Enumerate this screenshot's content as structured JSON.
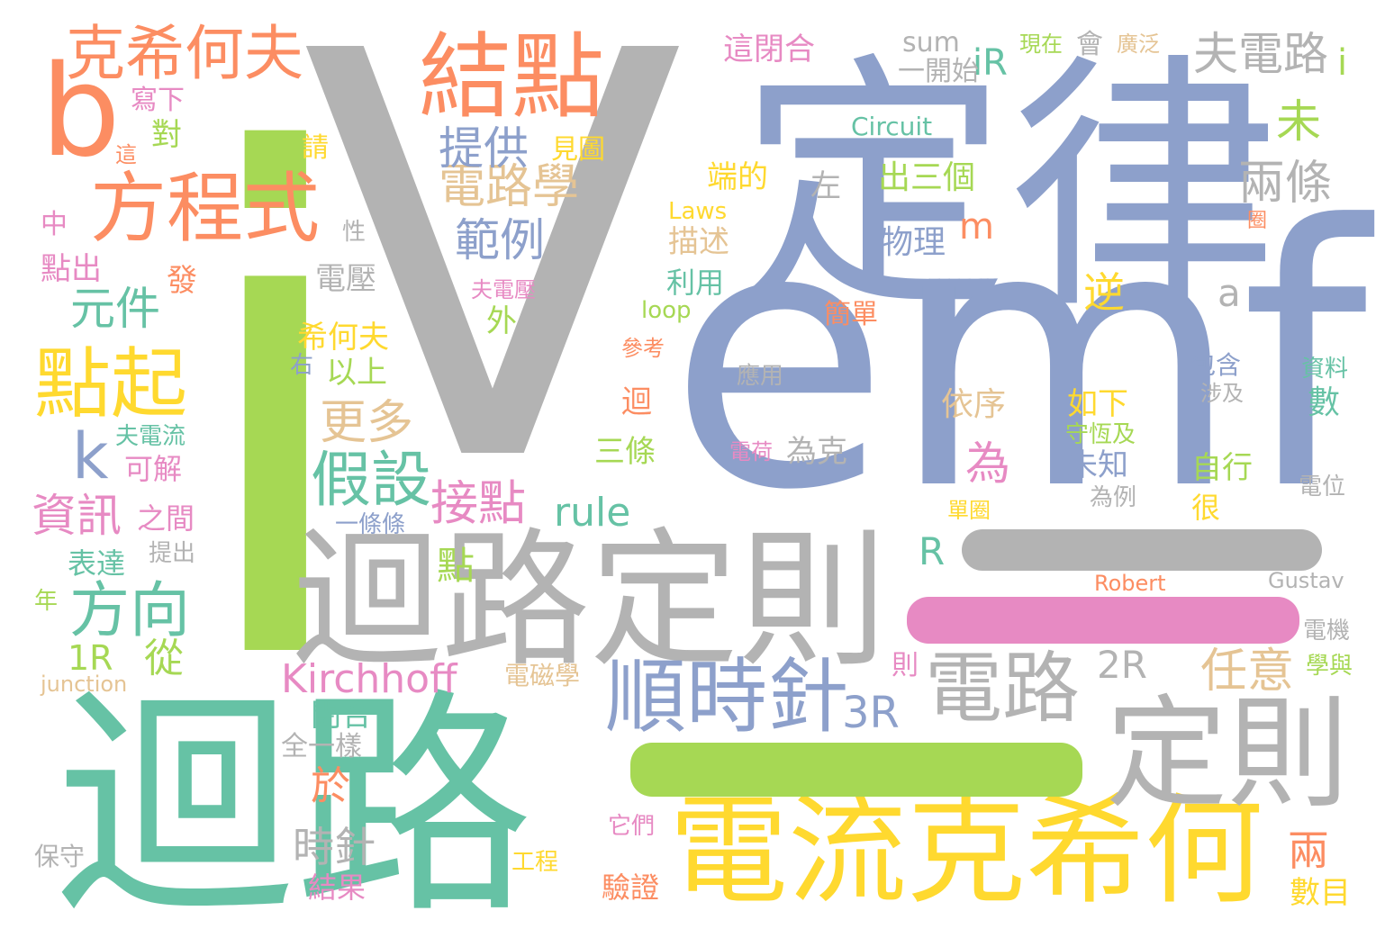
{
  "palette": {
    "green": "#a6d854",
    "grey": "#b3b3b3",
    "blue": "#8da0cb",
    "teal": "#66c2a5",
    "orange": "#fc8d62",
    "yellow": "#ffd92f",
    "pink": "#e78ac3",
    "tan": "#e5c494"
  },
  "words": [
    {
      "text": "i",
      "color": "green"
    },
    {
      "text": "V",
      "color": "grey"
    },
    {
      "text": "定律",
      "color": "blue"
    },
    {
      "text": "emf",
      "color": "blue"
    },
    {
      "text": "迴路",
      "color": "teal"
    },
    {
      "text": "迴路定則",
      "color": "grey"
    },
    {
      "text": "電流克希何",
      "color": "yellow"
    },
    {
      "text": "定則",
      "color": "grey"
    },
    {
      "text": "結點",
      "color": "orange"
    },
    {
      "text": "方程式",
      "color": "orange"
    },
    {
      "text": "克希何夫",
      "color": "orange"
    },
    {
      "text": "b",
      "color": "orange"
    },
    {
      "text": "點起",
      "color": "yellow"
    },
    {
      "text": "順時針",
      "color": "blue"
    },
    {
      "text": "電路",
      "color": "grey"
    },
    {
      "text": "假設",
      "color": "teal"
    },
    {
      "text": "電路學",
      "color": "tan"
    },
    {
      "text": "提供",
      "color": "blue"
    },
    {
      "text": "範例",
      "color": "blue"
    },
    {
      "text": "夫電路",
      "color": "grey"
    },
    {
      "text": "i",
      "color": "green"
    },
    {
      "text": "兩條",
      "color": "grey"
    },
    {
      "text": "未",
      "color": "green"
    },
    {
      "text": "元件",
      "color": "teal"
    },
    {
      "text": "k",
      "color": "blue"
    },
    {
      "text": "資訊",
      "color": "pink"
    },
    {
      "text": "方向",
      "color": "teal"
    },
    {
      "text": "接點",
      "color": "pink"
    },
    {
      "text": "更多",
      "color": "tan"
    },
    {
      "text": "Kirchhoff",
      "color": "pink"
    },
    {
      "text": "rule",
      "color": "teal"
    },
    {
      "text": "任意",
      "color": "tan"
    },
    {
      "text": "2R",
      "color": "grey"
    },
    {
      "text": "3R",
      "color": "blue"
    },
    {
      "text": "時針",
      "color": "grey"
    },
    {
      "text": "兩",
      "color": "orange"
    },
    {
      "text": "數目",
      "color": "yellow"
    },
    {
      "text": "iR",
      "color": "teal"
    },
    {
      "text": "sum",
      "color": "grey"
    },
    {
      "text": "一開始",
      "color": "grey"
    },
    {
      "text": "這閉合",
      "color": "pink"
    },
    {
      "text": "現在",
      "color": "green"
    },
    {
      "text": "會",
      "color": "grey"
    },
    {
      "text": "廣泛",
      "color": "tan"
    },
    {
      "text": "Circuit",
      "color": "teal"
    },
    {
      "text": "端的",
      "color": "yellow"
    },
    {
      "text": "左",
      "color": "grey"
    },
    {
      "text": "出三個",
      "color": "green"
    },
    {
      "text": "Laws",
      "color": "yellow"
    },
    {
      "text": "描述",
      "color": "tan"
    },
    {
      "text": "物理",
      "color": "blue"
    },
    {
      "text": "m",
      "color": "orange"
    },
    {
      "text": "利用",
      "color": "teal"
    },
    {
      "text": "loop",
      "color": "green"
    },
    {
      "text": "逆",
      "color": "yellow"
    },
    {
      "text": "a",
      "color": "grey"
    },
    {
      "text": "簡單",
      "color": "orange"
    },
    {
      "text": "參考",
      "color": "orange"
    },
    {
      "text": "應用",
      "color": "grey"
    },
    {
      "text": "迴",
      "color": "orange"
    },
    {
      "text": "三條",
      "color": "green"
    },
    {
      "text": "電荷",
      "color": "pink"
    },
    {
      "text": "為克",
      "color": "grey"
    },
    {
      "text": "依序",
      "color": "tan"
    },
    {
      "text": "如下",
      "color": "yellow"
    },
    {
      "text": "守恆及",
      "color": "green"
    },
    {
      "text": "未知",
      "color": "blue"
    },
    {
      "text": "為",
      "color": "pink"
    },
    {
      "text": "為例",
      "color": "grey"
    },
    {
      "text": "單圈",
      "color": "yellow"
    },
    {
      "text": "R",
      "color": "teal"
    },
    {
      "text": "包含",
      "color": "blue"
    },
    {
      "text": "涉及",
      "color": "grey"
    },
    {
      "text": "資料",
      "color": "teal"
    },
    {
      "text": "數",
      "color": "teal"
    },
    {
      "text": "自行",
      "color": "green"
    },
    {
      "text": "很",
      "color": "yellow"
    },
    {
      "text": "電位",
      "color": "grey"
    },
    {
      "text": "Robert",
      "color": "orange"
    },
    {
      "text": "Gustav",
      "color": "grey"
    },
    {
      "text": "電機",
      "color": "grey"
    },
    {
      "text": "學與",
      "color": "green"
    },
    {
      "text": "則",
      "color": "pink"
    },
    {
      "text": "電磁學",
      "color": "tan"
    },
    {
      "text": "點",
      "color": "green"
    },
    {
      "text": "從",
      "color": "green"
    },
    {
      "text": "1R",
      "color": "green"
    },
    {
      "text": "junction",
      "color": "tan"
    },
    {
      "text": "寫下",
      "color": "pink"
    },
    {
      "text": "對",
      "color": "green"
    },
    {
      "text": "這",
      "color": "orange"
    },
    {
      "text": "請",
      "color": "yellow"
    },
    {
      "text": "見圖",
      "color": "yellow"
    },
    {
      "text": "中",
      "color": "pink"
    },
    {
      "text": "點出",
      "color": "pink"
    },
    {
      "text": "發",
      "color": "orange"
    },
    {
      "text": "性",
      "color": "grey"
    },
    {
      "text": "電壓",
      "color": "grey"
    },
    {
      "text": "夫電壓",
      "color": "pink"
    },
    {
      "text": "外",
      "color": "green"
    },
    {
      "text": "希何夫",
      "color": "yellow"
    },
    {
      "text": "右",
      "color": "blue"
    },
    {
      "text": "以上",
      "color": "green"
    },
    {
      "text": "夫電流",
      "color": "teal"
    },
    {
      "text": "可解",
      "color": "pink"
    },
    {
      "text": "之間",
      "color": "pink"
    },
    {
      "text": "提出",
      "color": "grey"
    },
    {
      "text": "一條條",
      "color": "blue"
    },
    {
      "text": "表達",
      "color": "teal"
    },
    {
      "text": "年",
      "color": "green"
    },
    {
      "text": "閉合",
      "color": "teal"
    },
    {
      "text": "全一樣",
      "color": "grey"
    },
    {
      "text": "於",
      "color": "orange"
    },
    {
      "text": "結果",
      "color": "pink"
    },
    {
      "text": "保守",
      "color": "grey"
    },
    {
      "text": "它們",
      "color": "pink"
    },
    {
      "text": "工程",
      "color": "yellow"
    },
    {
      "text": "驗證",
      "color": "orange"
    },
    {
      "text": "圈",
      "color": "orange"
    }
  ],
  "bars": [
    {
      "color": "grey"
    },
    {
      "color": "pink"
    },
    {
      "color": "green"
    }
  ]
}
